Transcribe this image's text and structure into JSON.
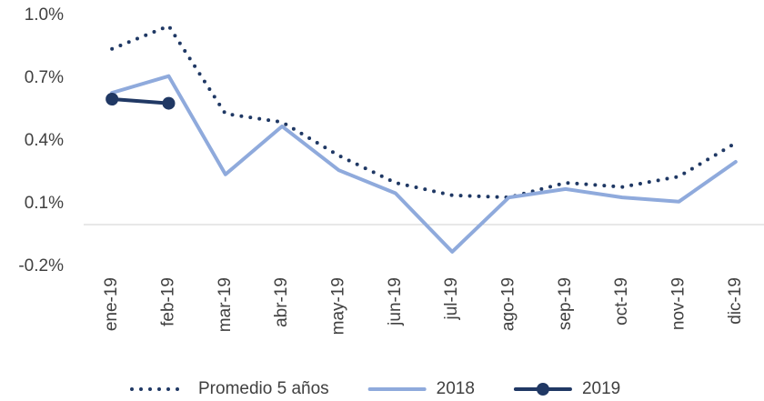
{
  "chart_data": {
    "type": "line",
    "categories": [
      "ene-19",
      "feb-19",
      "mar-19",
      "abr-19",
      "may-19",
      "jun-19",
      "jul-19",
      "ago-19",
      "sep-19",
      "oct-19",
      "nov-19",
      "dic-19"
    ],
    "series": [
      {
        "name": "Promedio 5 años",
        "color": "#1f3864",
        "style": "dotted",
        "values": [
          0.84,
          0.95,
          0.53,
          0.49,
          0.33,
          0.2,
          0.14,
          0.13,
          0.2,
          0.18,
          0.23,
          0.39
        ]
      },
      {
        "name": "2018",
        "color": "#8faadc",
        "style": "solid",
        "values": [
          0.63,
          0.71,
          0.24,
          0.47,
          0.26,
          0.15,
          -0.13,
          0.13,
          0.17,
          0.13,
          0.11,
          0.3
        ]
      },
      {
        "name": "2019",
        "color": "#203864",
        "style": "markers",
        "values": [
          0.6,
          0.58,
          null,
          null,
          null,
          null,
          null,
          null,
          null,
          null,
          null,
          null
        ]
      }
    ],
    "ylim": [
      -0.2,
      1.0
    ],
    "yticks": [
      {
        "value": -0.2,
        "label": "-0.2%"
      },
      {
        "value": 0.1,
        "label": "0.1%"
      },
      {
        "value": 0.4,
        "label": "0.4%"
      },
      {
        "value": 0.7,
        "label": "0.7%"
      },
      {
        "value": 1.0,
        "label": "1.0%"
      }
    ],
    "legend": "bottom"
  }
}
